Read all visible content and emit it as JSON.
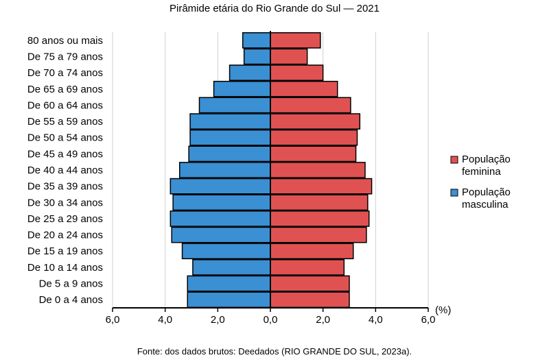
{
  "chart_data": {
    "type": "bar",
    "orientation": "horizontal",
    "layout": "population-pyramid",
    "title": "Pirâmide etária do Rio Grande do Sul — 2021",
    "unit_label": "(%)",
    "categories": [
      "80 anos ou mais",
      "De 75 a 79 anos",
      "De 70 a 74 anos",
      "De 65 a 69 anos",
      "De 60 a 64 anos",
      "De 55 a 59 anos",
      "De 50 a 54 anos",
      "De 45 a 49 anos",
      "De 40 a 44 anos",
      "De 35 a 39 anos",
      "De 30 a 34 anos",
      "De 25 a 29 anos",
      "De 20 a 24 anos",
      "De 15 a 19 anos",
      "De 10 a 14 anos",
      "De 5 a 9 anos",
      "De 0 a 4 anos"
    ],
    "series": [
      {
        "name": "População feminina",
        "side": "right",
        "color": "#e05252",
        "values": [
          1.9,
          1.4,
          2.0,
          2.55,
          3.05,
          3.4,
          3.3,
          3.25,
          3.6,
          3.85,
          3.7,
          3.75,
          3.65,
          3.15,
          2.8,
          3.0,
          3.0
        ]
      },
      {
        "name": "População masculina",
        "side": "left",
        "color": "#3b8fd3",
        "values": [
          1.05,
          1.0,
          1.55,
          2.15,
          2.7,
          3.05,
          3.05,
          3.1,
          3.45,
          3.8,
          3.7,
          3.8,
          3.75,
          3.35,
          2.95,
          3.15,
          3.15
        ]
      }
    ],
    "x_ticks": [
      "6,0",
      "4,0",
      "2,0",
      "0,0",
      "2,0",
      "4,0",
      "6,0"
    ],
    "xlim": [
      -6,
      6
    ],
    "grid": "vertical",
    "legend_position": "right",
    "legend": [
      {
        "line1": "População",
        "line2": "feminina",
        "color": "#e05252"
      },
      {
        "line1": "População",
        "line2": "masculina",
        "color": "#3b8fd3"
      }
    ],
    "source": "Fonte: dos dados brutos: Deedados (RIO GRANDE DO SUL, 2023a)."
  }
}
